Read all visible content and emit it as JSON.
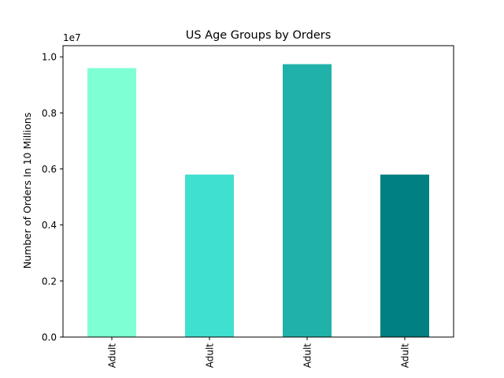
{
  "chart_data": {
    "type": "bar",
    "title": "US Age Groups by Orders",
    "xlabel": "",
    "ylabel": "Number of Orders In 10 Millions",
    "y_offset_label": "1e7",
    "y_scale_factor": 10000000,
    "ylim": [
      0,
      10400000
    ],
    "yticks": [
      0,
      2000000,
      4000000,
      6000000,
      8000000,
      10000000
    ],
    "ytick_labels": [
      "0.0",
      "0.2",
      "0.4",
      "0.6",
      "0.8",
      "1.0"
    ],
    "categories": [
      "Adult",
      "Adult",
      "Adult",
      "Adult"
    ],
    "values": [
      9600000,
      5800000,
      9740000,
      5800000
    ],
    "colors": [
      "#7fffd4",
      "#40e0d0",
      "#20b2aa",
      "#008080"
    ],
    "grid": false,
    "legend": "none"
  }
}
